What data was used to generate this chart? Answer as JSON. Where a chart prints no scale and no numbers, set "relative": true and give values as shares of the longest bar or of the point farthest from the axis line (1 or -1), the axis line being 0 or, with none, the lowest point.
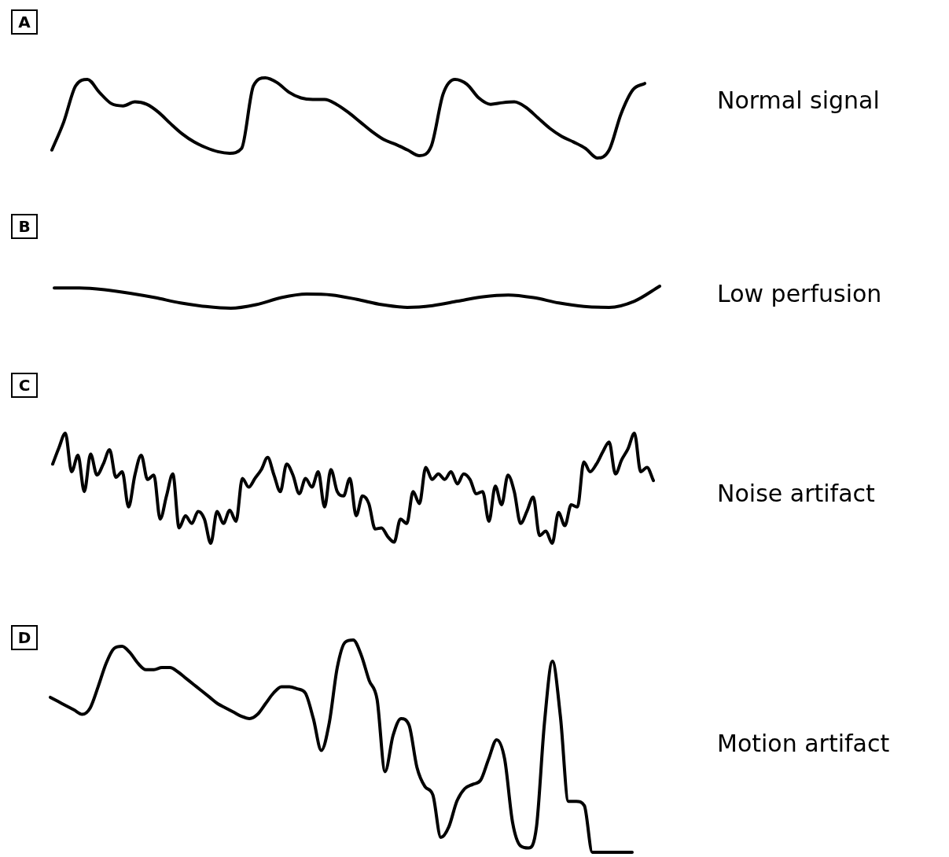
{
  "chart_data": [
    {
      "type": "line",
      "title": "A",
      "relative": true,
      "categories": [
        null,
        null,
        null,
        null,
        null,
        null,
        null,
        null,
        null,
        null,
        null,
        null,
        null,
        null,
        null,
        null,
        null,
        null,
        null,
        null,
        null,
        null,
        null,
        null,
        null,
        null,
        null,
        null,
        null,
        null,
        null,
        null,
        null,
        null,
        null,
        null,
        null,
        null,
        null,
        null,
        null,
        null,
        null,
        null,
        null,
        null,
        null,
        null,
        null,
        null,
        null
      ],
      "series": [
        {
          "name": "Normal signal",
          "color": "#000000",
          "values": [
            0.1,
            0.45,
            0.9,
            0.98,
            0.82,
            0.68,
            0.65,
            0.7,
            0.67,
            0.57,
            0.43,
            0.3,
            0.2,
            0.13,
            0.08,
            0.06,
            0.12,
            0.9,
            1.0,
            0.94,
            0.82,
            0.75,
            0.73,
            0.73,
            0.67,
            0.57,
            0.45,
            0.33,
            0.23,
            0.17,
            0.1,
            0.03,
            0.15,
            0.8,
            0.98,
            0.92,
            0.75,
            0.67,
            0.69,
            0.7,
            0.63,
            0.5,
            0.37,
            0.27,
            0.2,
            0.12,
            0,
            0.1,
            0.55,
            0.85,
            0.93
          ]
        }
      ]
    },
    {
      "type": "line",
      "title": "B",
      "relative": true,
      "categories": [
        null,
        null,
        null,
        null,
        null,
        null,
        null,
        null,
        null,
        null,
        null,
        null,
        null,
        null,
        null,
        null,
        null,
        null,
        null,
        null,
        null,
        null,
        null,
        null,
        null
      ],
      "series": [
        {
          "name": "Low perfusion",
          "color": "#000000",
          "values": [
            0.92,
            0.92,
            0.84,
            0.68,
            0.48,
            0.24,
            0.08,
            0,
            0.16,
            0.48,
            0.64,
            0.6,
            0.4,
            0.16,
            0.04,
            0.12,
            0.32,
            0.52,
            0.6,
            0.48,
            0.24,
            0.08,
            0.04,
            0.32,
            1.0
          ]
        }
      ]
    },
    {
      "type": "line",
      "title": "C",
      "relative": true,
      "categories": [
        null,
        null,
        null,
        null,
        null,
        null,
        null,
        null,
        null,
        null,
        null,
        null,
        null,
        null,
        null,
        null,
        null,
        null,
        null,
        null,
        null,
        null,
        null,
        null,
        null,
        null,
        null,
        null,
        null,
        null,
        null,
        null,
        null,
        null,
        null,
        null,
        null,
        null,
        null,
        null,
        null,
        null,
        null,
        null,
        null,
        null,
        null,
        null,
        null,
        null,
        null,
        null,
        null,
        null,
        null,
        null,
        null,
        null,
        null,
        null,
        null,
        null,
        null,
        null,
        null,
        null,
        null,
        null,
        null,
        null,
        null,
        null,
        null,
        null,
        null,
        null,
        null,
        null,
        null,
        null,
        null,
        null,
        null,
        null,
        null,
        null,
        null,
        null,
        null,
        null,
        null,
        null,
        null,
        null,
        null,
        null
      ],
      "series": [
        {
          "name": "Noise artifact",
          "color": "#000000",
          "values": [
            0.72,
            0.87,
            1.0,
            0.65,
            0.8,
            0.47,
            0.81,
            0.62,
            0.72,
            0.85,
            0.6,
            0.65,
            0.33,
            0.62,
            0.8,
            0.58,
            0.62,
            0.22,
            0.43,
            0.63,
            0.14,
            0.25,
            0.18,
            0.29,
            0.22,
            0,
            0.29,
            0.18,
            0.3,
            0.2,
            0.59,
            0.51,
            0.59,
            0.67,
            0.78,
            0.62,
            0.47,
            0.72,
            0.62,
            0.45,
            0.59,
            0.51,
            0.65,
            0.33,
            0.67,
            0.47,
            0.43,
            0.59,
            0.25,
            0.43,
            0.36,
            0.13,
            0.14,
            0.06,
            0.01,
            0.22,
            0.18,
            0.47,
            0.36,
            0.69,
            0.58,
            0.63,
            0.58,
            0.65,
            0.54,
            0.63,
            0.58,
            0.45,
            0.47,
            0.2,
            0.52,
            0.35,
            0.62,
            0.47,
            0.18,
            0.29,
            0.42,
            0.07,
            0.11,
            0,
            0.28,
            0.16,
            0.35,
            0.33,
            0.74,
            0.65,
            0.72,
            0.83,
            0.92,
            0.63,
            0.76,
            0.86,
            1.0,
            0.65,
            0.69,
            0.57
          ]
        }
      ]
    },
    {
      "type": "line",
      "title": "D",
      "relative": true,
      "categories": [
        null,
        null,
        null,
        null,
        null,
        null,
        null,
        null,
        null,
        null,
        null,
        null,
        null,
        null,
        null,
        null,
        null,
        null,
        null,
        null,
        null,
        null,
        null,
        null,
        null,
        null,
        null,
        null,
        null,
        null,
        null,
        null,
        null,
        null,
        null,
        null,
        null,
        null,
        null,
        null,
        null,
        null,
        null,
        null,
        null,
        null,
        null,
        null,
        null,
        null,
        null,
        null,
        null,
        null,
        null,
        null,
        null,
        null,
        null,
        null,
        null,
        null,
        null,
        null,
        null,
        null,
        null,
        null,
        null,
        null,
        null,
        null,
        null,
        null
      ],
      "series": [
        {
          "name": "Motion artifact",
          "color": "#000000",
          "values": [
            0.73,
            0.71,
            0.69,
            0.67,
            0.65,
            0.68,
            0.78,
            0.89,
            0.96,
            0.97,
            0.94,
            0.89,
            0.86,
            0.86,
            0.87,
            0.87,
            0.85,
            0.82,
            0.79,
            0.76,
            0.73,
            0.7,
            0.68,
            0.66,
            0.64,
            0.63,
            0.65,
            0.7,
            0.75,
            0.78,
            0.78,
            0.77,
            0.75,
            0.63,
            0.48,
            0.61,
            0.87,
            0.99,
            1.0,
            0.93,
            0.81,
            0.72,
            0.38,
            0.55,
            0.63,
            0.6,
            0.4,
            0.31,
            0.27,
            0.07,
            0.12,
            0.24,
            0.3,
            0.32,
            0.34,
            0.44,
            0.53,
            0.44,
            0.14,
            0.03,
            0.02,
            0.12,
            0.61,
            0.9,
            0.64,
            0.24,
            0.24,
            0.22,
            0,
            0,
            0,
            0,
            0,
            0
          ]
        }
      ]
    }
  ]
}
